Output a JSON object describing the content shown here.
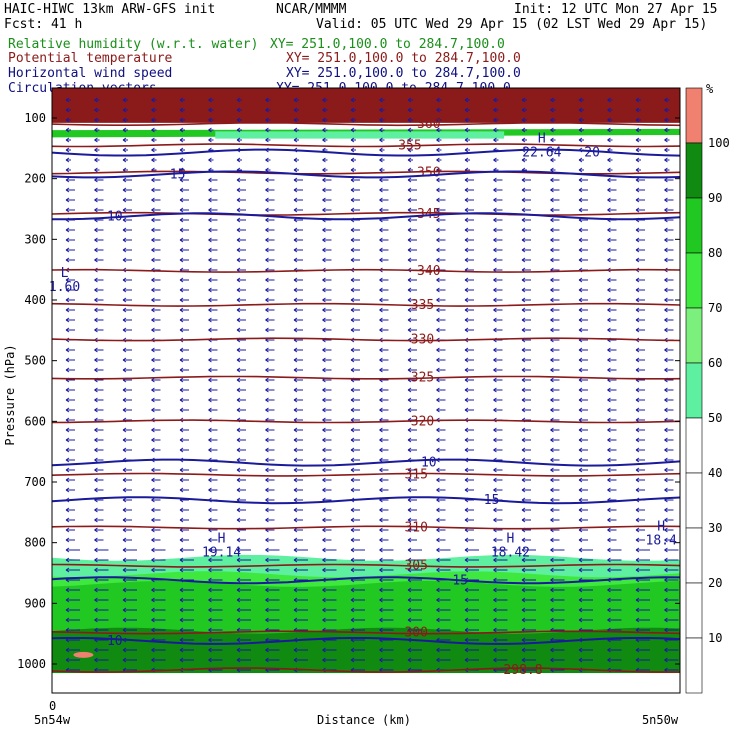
{
  "header": {
    "model": "HAIC-HIWC 13km ARW-GFS init",
    "org": "NCAR/MMMM",
    "init": "Init: 12 UTC Mon 27 Apr 15",
    "fcst": "Fcst:   41 h",
    "valid": "Valid: 05 UTC Wed 29 Apr 15 (02 LST Wed 29 Apr 15)",
    "fields": [
      {
        "name": "Relative humidity (w.r.t. water)",
        "xy": "XY= 251.0,100.0 to 284.7,100.0",
        "color": "#1a8f1a"
      },
      {
        "name": "Potential temperature",
        "xy": "XY= 251.0,100.0 to 284.7,100.0",
        "color": "#8b1a1a"
      },
      {
        "name": "Horizontal wind speed",
        "xy": "XY= 251.0,100.0 to 284.7,100.0",
        "color": "#101080"
      },
      {
        "name": "Circulation vectors",
        "xy": "XY= 251.0,100.0 to 284.7,100.0",
        "color": "#101080"
      }
    ]
  },
  "colors": {
    "theta": "#8b1a1a",
    "wind": "#1a1a9a",
    "vectors": "#1a1aa0",
    "rh_50_60": "#5ef0a0",
    "rh_60_70": "#7cf07c",
    "rh_70_80": "#3ee83e",
    "rh_80_90": "#22c822",
    "rh_90_100": "#108a10",
    "rh_100_plus": "#f08070",
    "stratosphere": "#8b1a1a"
  },
  "chart_data": {
    "type": "heatmap",
    "title": "HAIC-HIWC 13km ARW-GFS init",
    "xlabel": "Distance (km)",
    "ylabel": "Pressure (hPa)",
    "x_ticks": [
      "0"
    ],
    "x_end_labels": [
      "5n54w",
      "5n50w"
    ],
    "y_ticks": [
      "100",
      "200",
      "300",
      "400",
      "500",
      "600",
      "700",
      "800",
      "900",
      "1000"
    ],
    "ylim": [
      1060,
      50
    ],
    "colorbar": {
      "unit": "%",
      "labels": [
        "10",
        "20",
        "30",
        "40",
        "50",
        "60",
        "70",
        "80",
        "90",
        "100"
      ]
    },
    "theta_contours": [
      {
        "label": "360",
        "p": 110
      },
      {
        "label": "355",
        "p": 145
      },
      {
        "label": "350",
        "p": 190
      },
      {
        "label": "345",
        "p": 258
      },
      {
        "label": "340",
        "p": 352
      },
      {
        "label": "335",
        "p": 408
      },
      {
        "label": "330",
        "p": 465
      },
      {
        "label": "325",
        "p": 528
      },
      {
        "label": "320",
        "p": 600
      },
      {
        "label": "315",
        "p": 688
      },
      {
        "label": "310",
        "p": 775
      },
      {
        "label": "305",
        "p": 838
      },
      {
        "label": "300",
        "p": 948
      },
      {
        "label": "298.8",
        "p": 1010
      }
    ],
    "wind_contours": [
      {
        "label": "20",
        "p": 157
      },
      {
        "label": "15",
        "p": 193
      },
      {
        "label": "10",
        "p": 262
      },
      {
        "label": "10",
        "p": 668
      },
      {
        "label": "15",
        "p": 730
      },
      {
        "label": "15",
        "p": 862
      },
      {
        "label": "10",
        "p": 962
      }
    ],
    "extrema": [
      {
        "label": "H",
        "value": "22.64",
        "x_km": 0.78,
        "p": 140
      },
      {
        "label": "L",
        "value": "1.60",
        "x_km": 0.02,
        "p": 362
      },
      {
        "label": "H",
        "value": "19.14",
        "x_km": 0.27,
        "p": 800
      },
      {
        "label": "H",
        "value": "18.42",
        "x_km": 0.73,
        "p": 800
      },
      {
        "label": "H",
        "value": "18.4",
        "x_km": 0.97,
        "p": 780
      }
    ]
  }
}
